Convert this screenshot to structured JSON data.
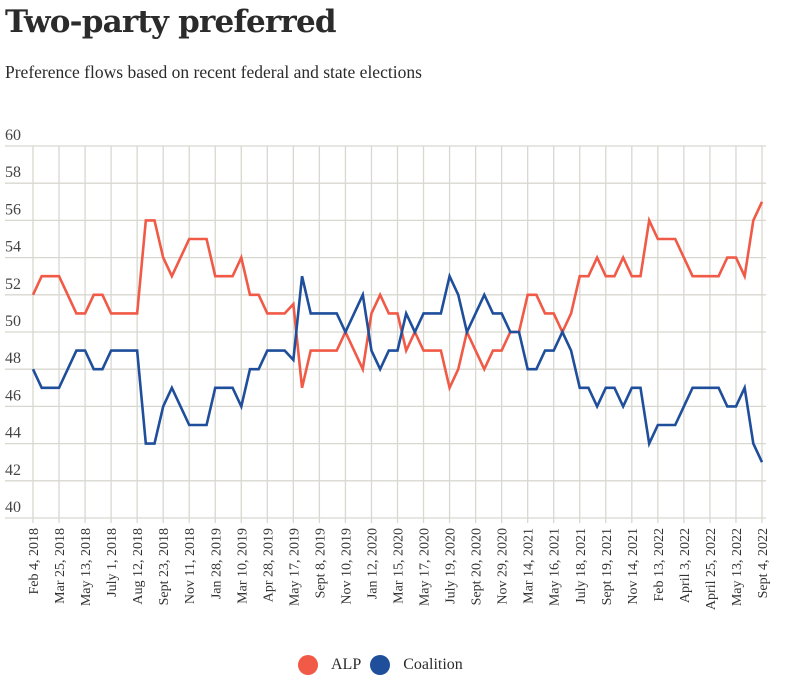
{
  "header": {
    "title": "Two-party preferred",
    "subtitle": "Preference flows based on recent federal and state elections"
  },
  "legend": [
    {
      "label": "ALP",
      "color": "#f05a47"
    },
    {
      "label": "Coalition",
      "color": "#1f4e9b"
    }
  ],
  "chart_data": {
    "type": "line",
    "title": "Two-party preferred",
    "subtitle": "Preference flows based on recent federal and state elections",
    "xlabel": "",
    "ylabel": "",
    "ylim": [
      40,
      60
    ],
    "yticks": [
      40,
      42,
      44,
      46,
      48,
      50,
      52,
      54,
      56,
      58,
      60
    ],
    "grid": true,
    "legend_position": "bottom-center",
    "points_per_label_interval": 3,
    "x_tick_labels": [
      "Feb 4, 2018",
      "Mar 25, 2018",
      "May 13, 2018",
      "July 1, 2018",
      "Aug 12, 2018",
      "Sept 23, 2018",
      "Nov 11, 2018",
      "Jan 28, 2019",
      "Mar 10, 2019",
      "Apr 28, 2019",
      "May 17, 2019",
      "Sept 8, 2019",
      "Nov 10, 2019",
      "Jan 12, 2020",
      "Mar 15, 2020",
      "May 17, 2020",
      "July 19, 2020",
      "Sept 20, 2020",
      "Nov 29, 2020",
      "Mar 14, 2021",
      "May 16, 2021",
      "July 18, 2021",
      "Sept 19, 2021",
      "Nov 14, 2021",
      "Feb 13, 2022",
      "April 3, 2022",
      "April 25, 2022",
      "May 13, 2022",
      "Sept 4, 2022"
    ],
    "series": [
      {
        "name": "ALP",
        "color": "#f05a47",
        "values": [
          52,
          53,
          53,
          53,
          52,
          51,
          51,
          52,
          52,
          51,
          51,
          51,
          51,
          56,
          56,
          54,
          53,
          54,
          55,
          55,
          55,
          53,
          53,
          53,
          54,
          52,
          52,
          51,
          51,
          51,
          51.5,
          47,
          49,
          49,
          49,
          49,
          50,
          49,
          48,
          51,
          52,
          51,
          51,
          49,
          50,
          49,
          49,
          49,
          47,
          48,
          50,
          49,
          48,
          49,
          49,
          50,
          50,
          52,
          52,
          51,
          51,
          50,
          51,
          53,
          53,
          54,
          53,
          53,
          54,
          53,
          53,
          56,
          55,
          55,
          55,
          54,
          53,
          53,
          53,
          53,
          54,
          54,
          53,
          56,
          57
        ]
      },
      {
        "name": "Coalition",
        "color": "#1f4e9b",
        "values": [
          48,
          47,
          47,
          47,
          48,
          49,
          49,
          48,
          48,
          49,
          49,
          49,
          49,
          44,
          44,
          46,
          47,
          46,
          45,
          45,
          45,
          47,
          47,
          47,
          46,
          48,
          48,
          49,
          49,
          49,
          48.5,
          53,
          51,
          51,
          51,
          51,
          50,
          51,
          52,
          49,
          48,
          49,
          49,
          51,
          50,
          51,
          51,
          51,
          53,
          52,
          50,
          51,
          52,
          51,
          51,
          50,
          50,
          48,
          48,
          49,
          49,
          50,
          49,
          47,
          47,
          46,
          47,
          47,
          46,
          47,
          47,
          44,
          45,
          45,
          45,
          46,
          47,
          47,
          47,
          47,
          46,
          46,
          47,
          44,
          43
        ]
      }
    ]
  }
}
